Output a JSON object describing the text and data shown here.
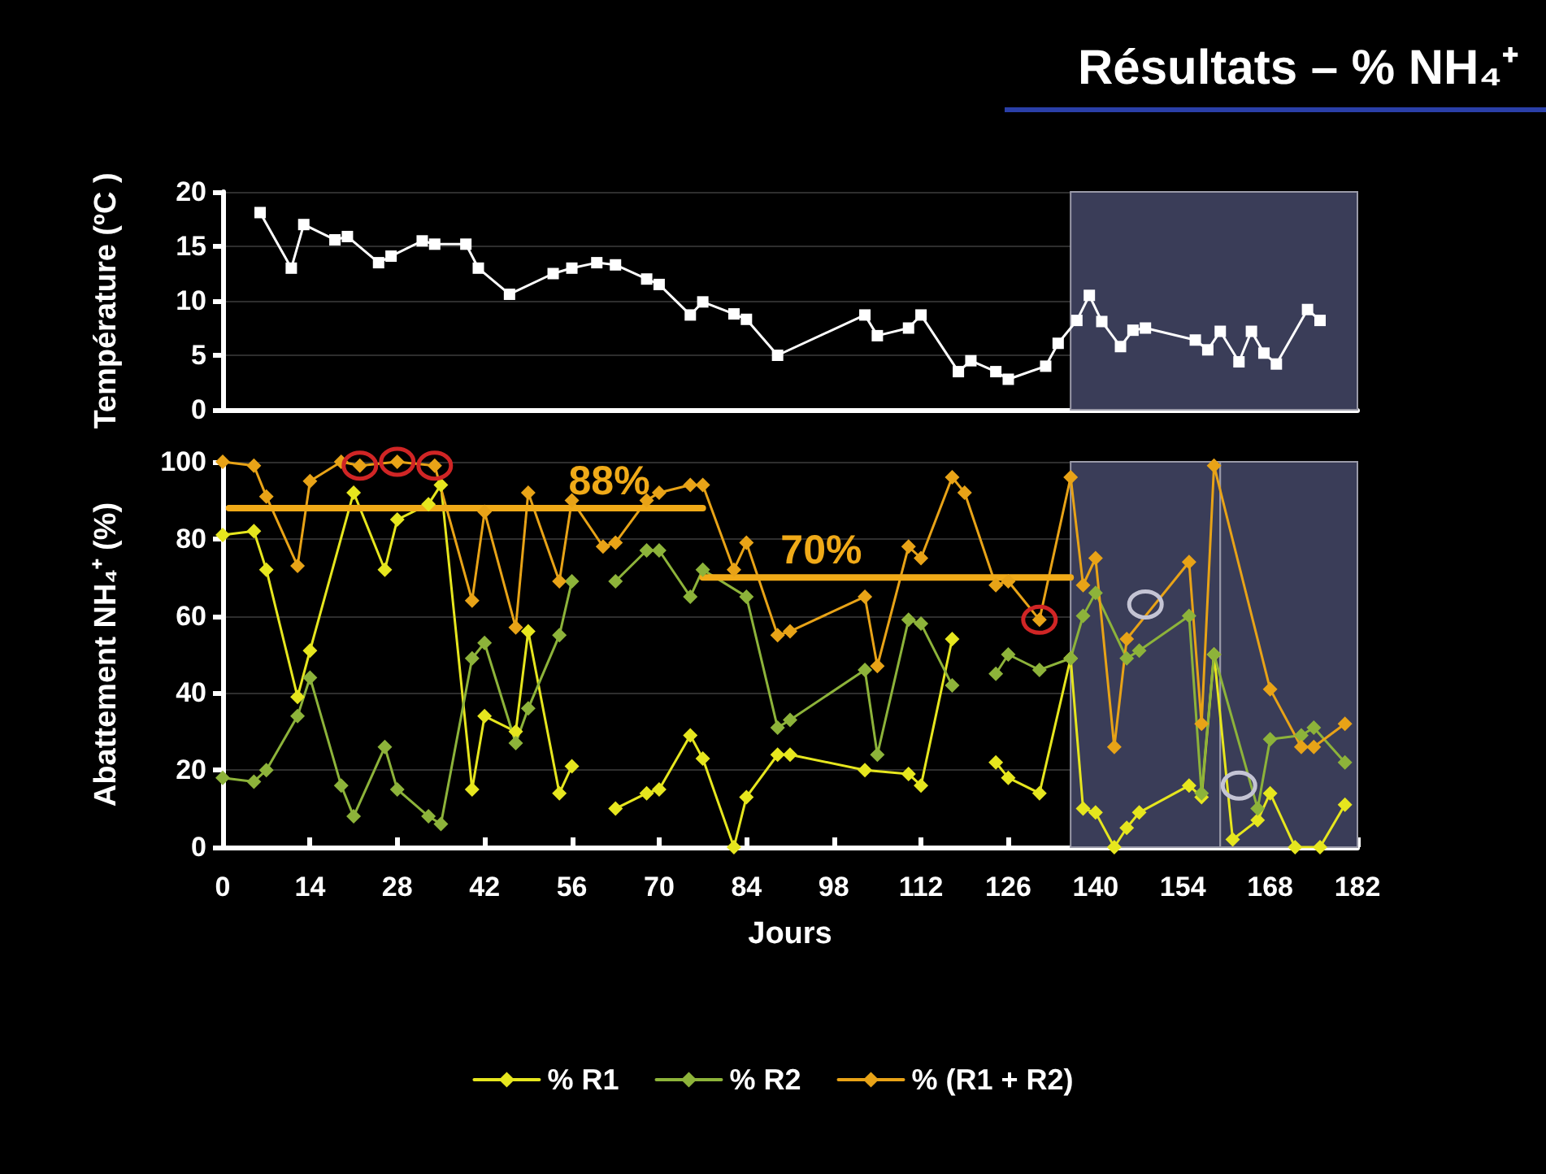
{
  "chart_data": [
    {
      "type": "line",
      "title": "Résultats – % NH₄⁺",
      "ylabel": "Température (ºC )",
      "xlim": [
        0,
        182
      ],
      "ylim": [
        0,
        20
      ],
      "yticks": [
        0,
        5,
        10,
        15,
        20
      ],
      "tick_labels": "y",
      "grid": "y",
      "marker": "square",
      "bands": [
        {
          "axis": "x",
          "from": 136,
          "to": 182,
          "color": "#3a3d58"
        }
      ],
      "series": [
        {
          "color": "#ffffff",
          "x": [
            6,
            11,
            13,
            18,
            20,
            25,
            27,
            32,
            34,
            39,
            41,
            46,
            53,
            56,
            60,
            63,
            68,
            70,
            75,
            77,
            82,
            84,
            89,
            103,
            105,
            110,
            112,
            118,
            120,
            124,
            126,
            132,
            134,
            137,
            139,
            141,
            144,
            146,
            148,
            156,
            158,
            160,
            163,
            165,
            167,
            169,
            174,
            176
          ],
          "values": [
            18.1,
            13.0,
            17.0,
            15.6,
            15.9,
            13.5,
            14.1,
            15.5,
            15.2,
            15.2,
            13.0,
            10.6,
            12.5,
            13.0,
            13.5,
            13.3,
            12.0,
            11.5,
            8.7,
            9.9,
            8.8,
            8.3,
            5.0,
            8.7,
            6.8,
            7.5,
            8.7,
            3.5,
            4.5,
            3.5,
            2.8,
            4.0,
            6.1,
            8.2,
            10.5,
            8.1,
            5.8,
            7.3,
            7.5,
            6.4,
            5.5,
            7.2,
            4.4,
            7.2,
            5.2,
            4.2,
            9.2,
            8.2
          ]
        }
      ]
    },
    {
      "type": "line",
      "xlabel": "Jours",
      "ylabel": "Abattement NH₄⁺ (%)",
      "xlim": [
        0,
        182
      ],
      "xticks": [
        0,
        14,
        28,
        42,
        56,
        70,
        84,
        98,
        112,
        126,
        140,
        154,
        168,
        182
      ],
      "ylim": [
        0,
        100
      ],
      "yticks": [
        0,
        20,
        40,
        60,
        80,
        100
      ],
      "grid": "y",
      "marker": "diamond",
      "legend": "bottom",
      "bands": [
        {
          "axis": "x",
          "from": 136,
          "to": 160,
          "color": "#3a3d58"
        },
        {
          "axis": "x",
          "from": 160,
          "to": 182,
          "color": "#3a3d58"
        }
      ],
      "annotations": [
        {
          "text": "88%",
          "x": 62,
          "y": 88
        },
        {
          "text": "70%",
          "x": 96,
          "y": 70
        }
      ],
      "series": [
        {
          "name": "% R1",
          "color": "#e6e61e",
          "x": [
            0,
            5,
            7,
            12,
            14,
            21,
            26,
            28,
            33,
            35,
            40,
            42,
            47,
            49,
            54,
            56,
            60,
            63,
            68,
            70,
            75,
            77,
            82,
            84,
            89,
            91,
            103,
            110,
            112,
            117,
            120,
            124,
            126,
            131,
            136,
            138,
            140,
            143,
            145,
            147,
            155,
            157,
            159,
            162,
            166,
            168,
            172,
            176,
            180
          ],
          "values": [
            81,
            82,
            72,
            39,
            51,
            92,
            72,
            85,
            89,
            94,
            15,
            34,
            30,
            56,
            14,
            21,
            null,
            10,
            14,
            15,
            29,
            23,
            0,
            13,
            24,
            24,
            20,
            19,
            16,
            54,
            null,
            22,
            18,
            14,
            49,
            10,
            9,
            0,
            5,
            9,
            16,
            13,
            50,
            2,
            7,
            14,
            0,
            0,
            11
          ]
        },
        {
          "name": "% R2",
          "color": "#8db33a",
          "x": [
            0,
            5,
            7,
            12,
            14,
            19,
            21,
            26,
            28,
            33,
            35,
            40,
            42,
            47,
            49,
            54,
            56,
            60,
            63,
            68,
            70,
            75,
            77,
            84,
            89,
            91,
            103,
            105,
            110,
            112,
            117,
            120,
            124,
            126,
            131,
            136,
            138,
            140,
            145,
            147,
            155,
            157,
            159,
            166,
            168,
            173,
            175,
            180
          ],
          "values": [
            18,
            17,
            20,
            34,
            44,
            16,
            8,
            26,
            15,
            8,
            6,
            49,
            53,
            27,
            36,
            55,
            69,
            null,
            69,
            77,
            77,
            65,
            72,
            65,
            31,
            33,
            46,
            24,
            59,
            58,
            42,
            null,
            45,
            50,
            46,
            49,
            60,
            66,
            49,
            51,
            60,
            14,
            50,
            10,
            28,
            29,
            31,
            22
          ]
        },
        {
          "name": "% (R1 + R2)",
          "color": "#e8a317",
          "x": [
            0,
            5,
            7,
            12,
            14,
            19,
            22,
            28,
            34,
            40,
            42,
            47,
            49,
            54,
            56,
            61,
            63,
            68,
            70,
            75,
            77,
            82,
            84,
            89,
            91,
            103,
            105,
            110,
            112,
            117,
            119,
            124,
            126,
            131,
            136,
            138,
            140,
            143,
            145,
            155,
            157,
            159,
            168,
            173,
            175,
            180
          ],
          "values": [
            100,
            99,
            91,
            73,
            95,
            100,
            99,
            100,
            99,
            64,
            87,
            57,
            92,
            69,
            90,
            78,
            79,
            90,
            92,
            94,
            94,
            72,
            79,
            55,
            56,
            65,
            47,
            78,
            75,
            96,
            92,
            68,
            69,
            59,
            96,
            68,
            75,
            26,
            54,
            74,
            32,
            99,
            41,
            26,
            26,
            32
          ]
        },
        {
          "type": "line",
          "marker": "none",
          "color": "#f0aa18",
          "x": [
            1,
            77
          ],
          "values": [
            88,
            88
          ]
        },
        {
          "type": "line",
          "marker": "none",
          "color": "#f0aa18",
          "x": [
            77,
            136
          ],
          "values": [
            70,
            70
          ]
        }
      ]
    }
  ]
}
